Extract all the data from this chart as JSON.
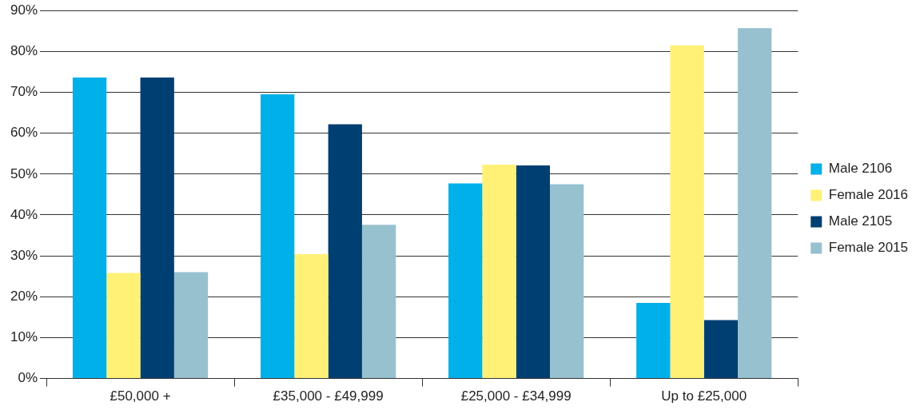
{
  "chart_data": {
    "type": "bar",
    "categories": [
      "£50,000 +",
      "£35,000 - £49,999",
      "£25,000 - £34,999",
      "Up to £25,000"
    ],
    "series": [
      {
        "name": "Male 2106",
        "color": "#00b0e8",
        "values": [
          73.6,
          69.5,
          47.7,
          18.5
        ]
      },
      {
        "name": "Female 2016",
        "color": "#fff176",
        "values": [
          25.8,
          30.4,
          52.3,
          81.5
        ]
      },
      {
        "name": "Male 2105",
        "color": "#003f72",
        "values": [
          73.6,
          62.2,
          52.1,
          14.3
        ]
      },
      {
        "name": "Female 2015",
        "color": "#97c1cf",
        "values": [
          26,
          37.6,
          47.5,
          85.7
        ]
      }
    ],
    "ylim": [
      0,
      90
    ],
    "yticks": [
      {
        "value": 0,
        "label": "0%"
      },
      {
        "value": 10,
        "label": "10%"
      },
      {
        "value": 20,
        "label": "20%"
      },
      {
        "value": 30,
        "label": "30%"
      },
      {
        "value": 40,
        "label": "40%"
      },
      {
        "value": 50,
        "label": "50%"
      },
      {
        "value": 60,
        "label": "60%"
      },
      {
        "value": 70,
        "label": "70%"
      },
      {
        "value": 80,
        "label": "80%"
      },
      {
        "value": 90,
        "label": "90%"
      }
    ],
    "grid": "y",
    "legend": "right"
  }
}
